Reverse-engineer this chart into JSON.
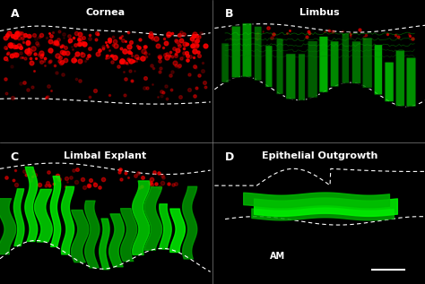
{
  "panels": [
    {
      "label": "A",
      "title": "Cornea",
      "color": "red"
    },
    {
      "label": "B",
      "title": "Limbus",
      "color": "green"
    },
    {
      "label": "C",
      "title": "Limbal Explant",
      "color": "mixed"
    },
    {
      "label": "D",
      "title": "Epithelial Outgrowth",
      "color": "green"
    }
  ],
  "background_color": "#000000",
  "text_color": "#ffffff",
  "dashed_line_color": "#ffffff",
  "am_label": "AM",
  "scale_bar_color": "#ffffff",
  "fig_width": 4.74,
  "fig_height": 3.17
}
